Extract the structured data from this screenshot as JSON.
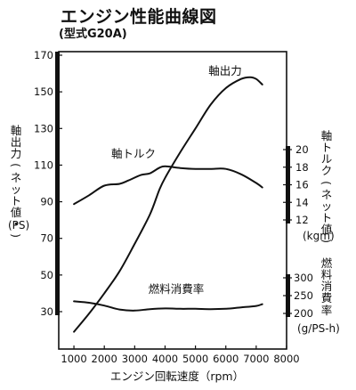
{
  "chart_data": {
    "type": "line",
    "title": "エンジン性能曲線図",
    "subtitle": "(型式G20A)",
    "xlabel": "エンジン回転速度（rpm）",
    "x_ticks": [
      1000,
      2000,
      3000,
      4000,
      5000,
      6000,
      7000,
      8000
    ],
    "xlim": [
      500,
      8000
    ],
    "left_axis": {
      "label": "軸出力(ネット値・)",
      "unit": "(PS)",
      "ticks": [
        30,
        50,
        70,
        90,
        110,
        130,
        150,
        170
      ],
      "range": [
        20,
        170
      ]
    },
    "right_axis_torque": {
      "label": "軸トルク(ネット値)",
      "unit": "(kgm)",
      "ticks": [
        12,
        14,
        16,
        18,
        20
      ],
      "range": [
        12,
        20
      ]
    },
    "right_axis_fuel": {
      "label": "燃料消費率",
      "unit": "(g/PS-h)",
      "ticks": [
        200,
        250,
        300
      ],
      "range": [
        200,
        300
      ]
    },
    "series": [
      {
        "name": "軸出力",
        "axis": "left",
        "points": [
          [
            1000,
            19
          ],
          [
            1500,
            29
          ],
          [
            2000,
            40
          ],
          [
            2500,
            52
          ],
          [
            3000,
            67
          ],
          [
            3500,
            83
          ],
          [
            3800,
            96
          ],
          [
            4000,
            103
          ],
          [
            4500,
            117
          ],
          [
            5000,
            130
          ],
          [
            5500,
            143
          ],
          [
            6000,
            152
          ],
          [
            6500,
            157
          ],
          [
            6800,
            158
          ],
          [
            7000,
            157
          ],
          [
            7200,
            154
          ]
        ]
      },
      {
        "name": "軸トルク",
        "axis": "right_torque",
        "points": [
          [
            1000,
            13.8
          ],
          [
            1500,
            14.8
          ],
          [
            2000,
            15.9
          ],
          [
            2500,
            16.1
          ],
          [
            2800,
            16.5
          ],
          [
            3200,
            17.1
          ],
          [
            3500,
            17.3
          ],
          [
            3800,
            17.9
          ],
          [
            4000,
            18.1
          ],
          [
            4500,
            17.9
          ],
          [
            5000,
            17.8
          ],
          [
            5500,
            17.8
          ],
          [
            6000,
            17.8
          ],
          [
            6500,
            17.2
          ],
          [
            7000,
            16.2
          ],
          [
            7200,
            15.7
          ]
        ]
      },
      {
        "name": "燃料消費率",
        "axis": "right_fuel",
        "points": [
          [
            1000,
            234
          ],
          [
            1500,
            230
          ],
          [
            2000,
            222
          ],
          [
            2500,
            211
          ],
          [
            3000,
            208
          ],
          [
            3500,
            212
          ],
          [
            4000,
            214
          ],
          [
            4500,
            213
          ],
          [
            5000,
            213
          ],
          [
            5500,
            212
          ],
          [
            6000,
            213
          ],
          [
            6500,
            217
          ],
          [
            7000,
            221
          ],
          [
            7200,
            226
          ]
        ]
      }
    ],
    "series_labels": [
      "軸出力",
      "軸トルク",
      "燃料消費率"
    ],
    "grid": false
  }
}
